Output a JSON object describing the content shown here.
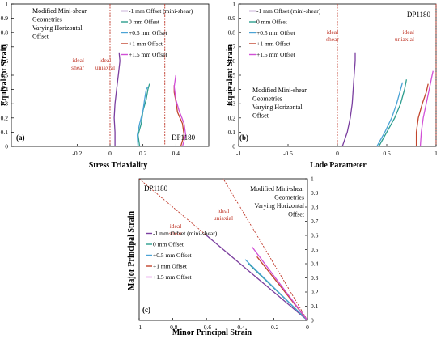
{
  "chart_data": [
    {
      "panel": "(a)",
      "type": "line",
      "material": "DP1180",
      "xlabel": "Stress Triaxiality",
      "ylabel": "Equivalent Strain",
      "xlim": [
        -0.6,
        0.6
      ],
      "ylim": [
        0,
        1
      ],
      "xticks": [
        "-0.2",
        "0",
        "0.2",
        "0.4"
      ],
      "xtick_values": [
        -0.2,
        0,
        0.2,
        0.4
      ],
      "yticks": [
        "0",
        "0.1",
        "0.2",
        "0.3",
        "0.4",
        "0.5",
        "0.6",
        "0.7",
        "0.8",
        "0.9",
        "1"
      ],
      "description_text": [
        "Modified Mini-shear",
        "Geometries",
        "Varying Horizontal",
        "Offset"
      ],
      "reference_lines": [
        {
          "label": "ideal shear",
          "x": 0
        },
        {
          "label": "ideal uniaxial",
          "x": 0.333
        }
      ],
      "legend": [
        {
          "name": "-1 mm Offset (mini-shear)",
          "color": "#7b3fa0"
        },
        {
          "name": "0 mm Offset",
          "color": "#2e9e8f"
        },
        {
          "name": "+0.5 mm Offset",
          "color": "#4aa3d6"
        },
        {
          "name": "+1 mm Offset",
          "color": "#c2452d"
        },
        {
          "name": "+1.5 mm Offset",
          "color": "#d14fd6"
        }
      ],
      "series": [
        {
          "color": "#7b3fa0",
          "points": [
            [
              0.03,
              0
            ],
            [
              0.03,
              0.1
            ],
            [
              0.025,
              0.2
            ],
            [
              0.03,
              0.3
            ],
            [
              0.04,
              0.4
            ],
            [
              0.05,
              0.5
            ],
            [
              0.06,
              0.6
            ],
            [
              0.055,
              0.66
            ]
          ]
        },
        {
          "color": "#2e9e8f",
          "points": [
            [
              0.18,
              0
            ],
            [
              0.17,
              0.08
            ],
            [
              0.19,
              0.16
            ],
            [
              0.2,
              0.25
            ],
            [
              0.22,
              0.33
            ],
            [
              0.23,
              0.4
            ],
            [
              0.24,
              0.44
            ]
          ]
        },
        {
          "color": "#4aa3d6",
          "points": [
            [
              0.17,
              0
            ],
            [
              0.165,
              0.08
            ],
            [
              0.18,
              0.16
            ],
            [
              0.2,
              0.25
            ],
            [
              0.21,
              0.33
            ],
            [
              0.22,
              0.4
            ],
            [
              0.23,
              0.42
            ]
          ]
        },
        {
          "color": "#c2452d",
          "points": [
            [
              0.43,
              0
            ],
            [
              0.45,
              0.08
            ],
            [
              0.44,
              0.16
            ],
            [
              0.41,
              0.24
            ],
            [
              0.4,
              0.32
            ],
            [
              0.39,
              0.38
            ],
            [
              0.39,
              0.43
            ]
          ]
        },
        {
          "color": "#d14fd6",
          "points": [
            [
              0.44,
              0
            ],
            [
              0.46,
              0.08
            ],
            [
              0.45,
              0.16
            ],
            [
              0.42,
              0.25
            ],
            [
              0.4,
              0.33
            ],
            [
              0.39,
              0.42
            ],
            [
              0.4,
              0.5
            ]
          ]
        }
      ]
    },
    {
      "panel": "(b)",
      "type": "line",
      "material": "DP1180",
      "xlabel": "Lode Parameter",
      "ylabel": "Equivalent Strain",
      "xlim": [
        -1,
        1
      ],
      "ylim": [
        0,
        1
      ],
      "xticks": [
        "-1",
        "-0.5",
        "0",
        "0.5",
        "1"
      ],
      "xtick_values": [
        -1,
        -0.5,
        0,
        0.5,
        1
      ],
      "yticks": [
        "0",
        "0.1",
        "0.2",
        "0.3",
        "0.4",
        "0.5",
        "0.6",
        "0.7",
        "0.8",
        "0.9",
        "1"
      ],
      "description_text": [
        "Modified Mini-shear",
        "Geometries",
        "Varying Horizontal",
        "Offset"
      ],
      "reference_lines": [
        {
          "label": "ideal shear",
          "x": 0
        },
        {
          "label": "ideal uniaxial",
          "x": 1
        }
      ],
      "legend": [
        {
          "name": "-1 mm Offset (mini-shear)",
          "color": "#7b3fa0"
        },
        {
          "name": "0 mm Offset",
          "color": "#2e9e8f"
        },
        {
          "name": "+0.5 mm Offset",
          "color": "#4aa3d6"
        },
        {
          "name": "+1 mm Offset",
          "color": "#c2452d"
        },
        {
          "name": "+1.5 mm Offset",
          "color": "#d14fd6"
        }
      ],
      "series": [
        {
          "color": "#7b3fa0",
          "points": [
            [
              0.05,
              0
            ],
            [
              0.1,
              0.1
            ],
            [
              0.13,
              0.2
            ],
            [
              0.15,
              0.3
            ],
            [
              0.16,
              0.4
            ],
            [
              0.17,
              0.5
            ],
            [
              0.18,
              0.6
            ],
            [
              0.18,
              0.66
            ]
          ]
        },
        {
          "color": "#2e9e8f",
          "points": [
            [
              0.42,
              0
            ],
            [
              0.5,
              0.1
            ],
            [
              0.58,
              0.2
            ],
            [
              0.64,
              0.3
            ],
            [
              0.68,
              0.4
            ],
            [
              0.7,
              0.47
            ]
          ]
        },
        {
          "color": "#4aa3d6",
          "points": [
            [
              0.4,
              0
            ],
            [
              0.48,
              0.1
            ],
            [
              0.55,
              0.2
            ],
            [
              0.6,
              0.3
            ],
            [
              0.64,
              0.4
            ],
            [
              0.66,
              0.45
            ]
          ]
        },
        {
          "color": "#c2452d",
          "points": [
            [
              0.8,
              0
            ],
            [
              0.8,
              0.1
            ],
            [
              0.82,
              0.2
            ],
            [
              0.86,
              0.3
            ],
            [
              0.9,
              0.38
            ],
            [
              0.92,
              0.44
            ]
          ]
        },
        {
          "color": "#d14fd6",
          "points": [
            [
              0.84,
              0
            ],
            [
              0.85,
              0.1
            ],
            [
              0.87,
              0.2
            ],
            [
              0.9,
              0.3
            ],
            [
              0.93,
              0.4
            ],
            [
              0.96,
              0.5
            ],
            [
              0.97,
              0.53
            ]
          ]
        }
      ]
    },
    {
      "panel": "(c)",
      "type": "line",
      "material": "DP1180",
      "xlabel": "Minor Principal Strain",
      "ylabel": "Major Principal Strain",
      "xlim": [
        -1,
        0
      ],
      "ylim": [
        0,
        1
      ],
      "xticks": [
        "-1",
        "-0.8",
        "-0.6",
        "-0.4",
        "-0.2",
        "0"
      ],
      "xtick_values": [
        -1,
        -0.8,
        -0.6,
        -0.4,
        -0.2,
        0
      ],
      "yticks": [
        "0",
        "0.1",
        "0.2",
        "0.3",
        "0.4",
        "0.5",
        "0.6",
        "0.7",
        "0.8",
        "0.9",
        "1"
      ],
      "description_text": [
        "Modified Mini-shear",
        "Geometries",
        "Varying Horizontal",
        "Offset"
      ],
      "reference_lines": [
        {
          "label": "ideal shear",
          "slope": -1
        },
        {
          "label": "ideal uniaxial",
          "slope": -2
        }
      ],
      "legend": [
        {
          "name": "-1 mm Offset (mini-shear)",
          "color": "#7b3fa0"
        },
        {
          "name": "0 mm Offset",
          "color": "#2e9e8f"
        },
        {
          "name": "+0.5 mm Offset",
          "color": "#4aa3d6"
        },
        {
          "name": "+1 mm Offset",
          "color": "#c2452d"
        },
        {
          "name": "+1.5 mm Offset",
          "color": "#d14fd6"
        }
      ],
      "series": [
        {
          "color": "#7b3fa0",
          "points": [
            [
              0,
              0
            ],
            [
              -0.6,
              0.6
            ]
          ]
        },
        {
          "color": "#2e9e8f",
          "points": [
            [
              0,
              0
            ],
            [
              -0.35,
              0.4
            ]
          ]
        },
        {
          "color": "#4aa3d6",
          "points": [
            [
              0,
              0
            ],
            [
              -0.37,
              0.43
            ]
          ]
        },
        {
          "color": "#c2452d",
          "points": [
            [
              0,
              0
            ],
            [
              -0.3,
              0.45
            ]
          ]
        },
        {
          "color": "#d14fd6",
          "points": [
            [
              0,
              0
            ],
            [
              -0.33,
              0.52
            ]
          ]
        }
      ]
    }
  ]
}
